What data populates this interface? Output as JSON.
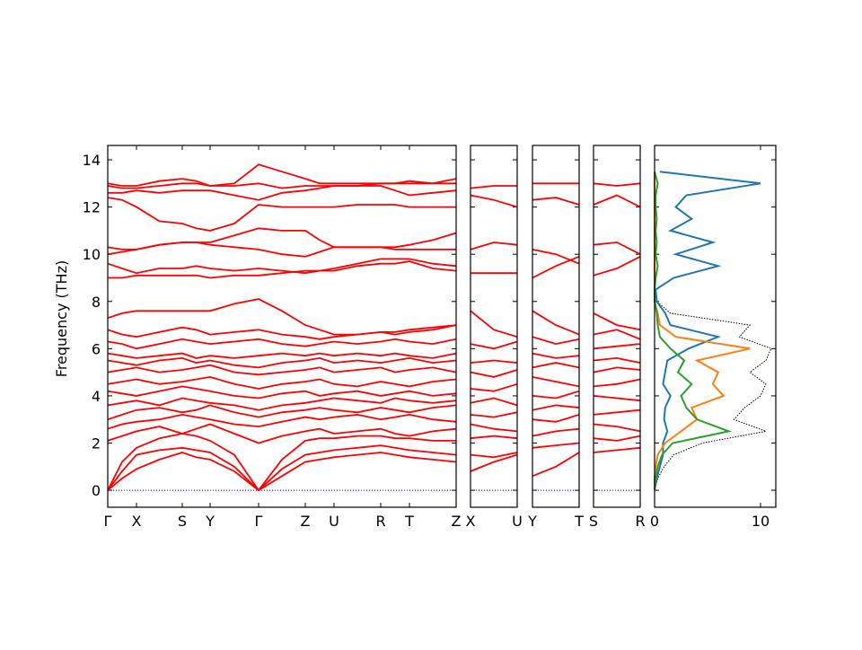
{
  "chart_data": [
    {
      "type": "line",
      "ylabel": "Frequency (THz)",
      "color": "#ff0000",
      "zero_line": true,
      "zero_line_color": "#0000cc",
      "xlim": [
        0,
        3.88
      ],
      "ylim": [
        -0.72,
        14.61
      ],
      "yticks": [
        0,
        2,
        4,
        6,
        8,
        10,
        12,
        14
      ],
      "xticks": [
        {
          "value": 0,
          "label": "Γ"
        },
        {
          "value": 0.32,
          "label": "X"
        },
        {
          "value": 0.83,
          "label": "S"
        },
        {
          "value": 1.14,
          "label": "Y"
        },
        {
          "value": 1.68,
          "label": "Γ"
        },
        {
          "value": 2.2,
          "label": "Z"
        },
        {
          "value": 2.52,
          "label": "U"
        },
        {
          "value": 3.04,
          "label": "R"
        },
        {
          "value": 3.36,
          "label": "T"
        },
        {
          "value": 3.88,
          "label": "Z"
        }
      ],
      "x": [
        0,
        0.16,
        0.32,
        0.575,
        0.83,
        0.985,
        1.14,
        1.41,
        1.68,
        1.94,
        2.2,
        2.36,
        2.52,
        2.78,
        3.04,
        3.2,
        3.36,
        3.62,
        3.88
      ],
      "series": [
        {
          "values": [
            0,
            0.5,
            0.9,
            1.3,
            1.6,
            1.4,
            1.3,
            0.8,
            0,
            0.6,
            1.2,
            1.3,
            1.4,
            1.5,
            1.6,
            1.5,
            1.4,
            1.3,
            1.2
          ]
        },
        {
          "values": [
            0,
            0.8,
            1.5,
            1.7,
            1.8,
            1.7,
            1.6,
            1.0,
            0,
            0.9,
            1.5,
            1.6,
            1.7,
            1.8,
            1.9,
            1.8,
            1.7,
            1.6,
            1.5
          ]
        },
        {
          "values": [
            0,
            1.2,
            1.8,
            2.2,
            2.4,
            2.3,
            2.1,
            1.5,
            0,
            1.3,
            2.1,
            2.2,
            2.2,
            2.3,
            2.3,
            2.2,
            2.2,
            2.1,
            2.1
          ]
        },
        {
          "values": [
            2.1,
            2.3,
            2.5,
            2.7,
            2.4,
            2.6,
            2.8,
            2.4,
            2.0,
            2.3,
            2.5,
            2.6,
            2.4,
            2.5,
            2.6,
            2.4,
            2.3,
            2.5,
            2.6
          ]
        },
        {
          "values": [
            2.6,
            2.8,
            2.9,
            3.0,
            3.2,
            3.1,
            3.0,
            2.8,
            2.7,
            2.9,
            3.1,
            3.0,
            3.1,
            3.2,
            3.0,
            3.1,
            3.2,
            3.0,
            2.9
          ]
        },
        {
          "values": [
            3.0,
            3.2,
            3.4,
            3.5,
            3.3,
            3.4,
            3.6,
            3.3,
            3.1,
            3.3,
            3.4,
            3.5,
            3.4,
            3.3,
            3.5,
            3.4,
            3.3,
            3.5,
            3.6
          ]
        },
        {
          "values": [
            3.6,
            3.7,
            3.8,
            3.6,
            3.9,
            3.8,
            3.7,
            3.6,
            3.4,
            3.6,
            3.7,
            3.8,
            3.9,
            3.8,
            3.7,
            3.9,
            3.8,
            3.7,
            3.8
          ]
        },
        {
          "values": [
            4.2,
            4.1,
            4.0,
            4.2,
            4.4,
            4.3,
            4.2,
            4.0,
            3.9,
            4.1,
            4.2,
            4.0,
            4.1,
            4.2,
            4.0,
            4.1,
            4.2,
            4.0,
            4.1
          ]
        },
        {
          "values": [
            4.5,
            4.6,
            4.7,
            4.5,
            4.6,
            4.7,
            4.8,
            4.5,
            4.3,
            4.5,
            4.6,
            4.7,
            4.5,
            4.4,
            4.6,
            4.5,
            4.4,
            4.6,
            4.7
          ]
        },
        {
          "values": [
            5.0,
            5.1,
            5.2,
            5.0,
            5.1,
            5.2,
            5.3,
            5.0,
            4.9,
            5.0,
            5.1,
            5.2,
            5.0,
            5.1,
            5.2,
            5.0,
            5.1,
            5.2,
            5.0
          ]
        },
        {
          "values": [
            5.5,
            5.4,
            5.3,
            5.5,
            5.6,
            5.4,
            5.5,
            5.3,
            5.2,
            5.4,
            5.5,
            5.6,
            5.4,
            5.5,
            5.4,
            5.5,
            5.6,
            5.4,
            5.5
          ]
        },
        {
          "values": [
            5.8,
            5.7,
            5.6,
            5.7,
            5.8,
            5.6,
            5.7,
            5.6,
            5.7,
            5.8,
            5.7,
            5.8,
            5.7,
            5.8,
            5.7,
            5.8,
            5.7,
            5.6,
            5.8
          ]
        },
        {
          "values": [
            6.3,
            6.2,
            6.0,
            6.2,
            6.4,
            6.3,
            6.2,
            6.3,
            6.4,
            6.2,
            6.1,
            6.2,
            6.3,
            6.2,
            6.3,
            6.4,
            6.3,
            6.2,
            6.4
          ]
        },
        {
          "values": [
            6.8,
            6.6,
            6.5,
            6.7,
            6.9,
            6.8,
            6.6,
            6.7,
            6.8,
            6.6,
            6.5,
            6.4,
            6.5,
            6.6,
            6.7,
            6.6,
            6.7,
            6.8,
            7.0
          ]
        },
        {
          "values": [
            7.3,
            7.5,
            7.6,
            7.6,
            7.6,
            7.6,
            7.6,
            7.9,
            8.1,
            7.6,
            7.0,
            6.8,
            6.6,
            6.6,
            6.7,
            6.7,
            6.8,
            6.9,
            7.0
          ]
        },
        {
          "values": [
            9.0,
            9.0,
            9.1,
            9.1,
            9.1,
            9.1,
            9.0,
            9.1,
            9.1,
            9.2,
            9.3,
            9.3,
            9.3,
            9.5,
            9.6,
            9.6,
            9.7,
            9.4,
            9.3
          ]
        },
        {
          "values": [
            9.6,
            9.4,
            9.2,
            9.4,
            9.4,
            9.5,
            9.4,
            9.3,
            9.4,
            9.3,
            9.2,
            9.3,
            9.4,
            9.6,
            9.8,
            9.8,
            9.8,
            9.6,
            9.5
          ]
        },
        {
          "values": [
            10.0,
            10.1,
            10.2,
            10.4,
            10.5,
            10.5,
            10.4,
            10.3,
            10.2,
            10.0,
            9.9,
            10.1,
            10.3,
            10.3,
            10.3,
            10.3,
            10.4,
            10.6,
            10.9
          ]
        },
        {
          "values": [
            10.3,
            10.2,
            10.2,
            10.4,
            10.5,
            10.5,
            10.5,
            10.8,
            11.1,
            11.0,
            11.0,
            10.6,
            10.3,
            10.3,
            10.3,
            10.2,
            10.2,
            10.2,
            10.2
          ]
        },
        {
          "values": [
            12.4,
            12.3,
            12.0,
            11.4,
            11.3,
            11.1,
            11.0,
            11.3,
            12.1,
            12.0,
            12.0,
            12.0,
            12.0,
            12.1,
            12.1,
            12.1,
            12.0,
            12.0,
            12.0
          ]
        },
        {
          "values": [
            12.6,
            12.6,
            12.7,
            12.6,
            12.7,
            12.7,
            12.7,
            12.5,
            12.3,
            12.6,
            12.7,
            12.8,
            12.9,
            12.9,
            12.9,
            12.7,
            12.5,
            12.6,
            12.7
          ]
        },
        {
          "values": [
            12.9,
            12.8,
            12.8,
            12.9,
            13.0,
            13.0,
            12.9,
            12.9,
            13.0,
            12.8,
            12.9,
            12.9,
            12.9,
            12.9,
            13.0,
            13.0,
            13.0,
            13.0,
            13.0
          ]
        },
        {
          "values": [
            13.0,
            12.9,
            12.9,
            13.1,
            13.2,
            13.1,
            12.9,
            13.0,
            13.8,
            13.5,
            13.2,
            13.0,
            13.0,
            13.0,
            13.0,
            13.0,
            13.1,
            13.0,
            13.2
          ]
        }
      ]
    },
    {
      "type": "line",
      "color": "#ff0000",
      "zero_line": true,
      "zero_line_color": "#0000cc",
      "xlim": [
        0,
        0.52
      ],
      "ylim": [
        -0.72,
        14.61
      ],
      "xticks": [
        {
          "value": 0,
          "label": "X"
        },
        {
          "value": 0.52,
          "label": "U"
        }
      ],
      "x": [
        0,
        0.26,
        0.52
      ],
      "series": [
        {
          "values": [
            0.8,
            1.2,
            1.5
          ]
        },
        {
          "values": [
            1.5,
            1.4,
            1.6
          ]
        },
        {
          "values": [
            2.2,
            2.3,
            2.2
          ]
        },
        {
          "values": [
            2.8,
            2.6,
            2.5
          ]
        },
        {
          "values": [
            3.2,
            3.1,
            3.3
          ]
        },
        {
          "values": [
            3.7,
            3.9,
            3.6
          ]
        },
        {
          "values": [
            4.3,
            4.2,
            4.5
          ]
        },
        {
          "values": [
            5.0,
            4.8,
            5.1
          ]
        },
        {
          "values": [
            5.4,
            5.5,
            5.4
          ]
        },
        {
          "values": [
            6.2,
            6.0,
            6.3
          ]
        },
        {
          "values": [
            7.6,
            6.8,
            6.5
          ]
        },
        {
          "values": [
            9.2,
            9.2,
            9.2
          ]
        },
        {
          "values": [
            10.2,
            10.5,
            10.4
          ]
        },
        {
          "values": [
            12.5,
            12.3,
            12.0
          ]
        },
        {
          "values": [
            12.8,
            12.9,
            12.9
          ]
        }
      ]
    },
    {
      "type": "line",
      "color": "#ff0000",
      "zero_line": true,
      "zero_line_color": "#0000cc",
      "xlim": [
        0,
        0.52
      ],
      "ylim": [
        -0.72,
        14.61
      ],
      "xticks": [
        {
          "value": 0,
          "label": "Y"
        },
        {
          "value": 0.52,
          "label": "T"
        }
      ],
      "x": [
        0,
        0.26,
        0.52
      ],
      "series": [
        {
          "values": [
            0.6,
            1.0,
            1.6
          ]
        },
        {
          "values": [
            1.8,
            1.9,
            2.0
          ]
        },
        {
          "values": [
            2.3,
            2.5,
            2.6
          ]
        },
        {
          "values": [
            3.0,
            2.9,
            3.2
          ]
        },
        {
          "values": [
            3.4,
            3.6,
            3.5
          ]
        },
        {
          "values": [
            4.0,
            3.9,
            4.2
          ]
        },
        {
          "values": [
            4.8,
            4.6,
            4.4
          ]
        },
        {
          "values": [
            5.2,
            5.4,
            5.2
          ]
        },
        {
          "values": [
            5.8,
            5.6,
            5.7
          ]
        },
        {
          "values": [
            6.5,
            6.2,
            6.4
          ]
        },
        {
          "values": [
            7.6,
            7.0,
            6.6
          ]
        },
        {
          "values": [
            9.0,
            9.5,
            9.9
          ]
        },
        {
          "values": [
            10.2,
            10.0,
            9.6
          ]
        },
        {
          "values": [
            12.3,
            12.4,
            12.1
          ]
        },
        {
          "values": [
            13.0,
            13.0,
            13.0
          ]
        }
      ]
    },
    {
      "type": "line",
      "color": "#ff0000",
      "zero_line": true,
      "zero_line_color": "#0000cc",
      "xlim": [
        0,
        0.52
      ],
      "ylim": [
        -0.72,
        14.61
      ],
      "xticks": [
        {
          "value": 0,
          "label": "S"
        },
        {
          "value": 0.52,
          "label": "R"
        }
      ],
      "x": [
        0,
        0.26,
        0.52
      ],
      "series": [
        {
          "values": [
            1.6,
            1.7,
            1.8
          ]
        },
        {
          "values": [
            2.2,
            2.1,
            2.3
          ]
        },
        {
          "values": [
            2.8,
            2.7,
            2.5
          ]
        },
        {
          "values": [
            3.2,
            3.3,
            3.4
          ]
        },
        {
          "values": [
            4.0,
            3.9,
            3.8
          ]
        },
        {
          "values": [
            4.4,
            4.5,
            4.7
          ]
        },
        {
          "values": [
            5.0,
            5.2,
            5.1
          ]
        },
        {
          "values": [
            5.5,
            5.6,
            5.4
          ]
        },
        {
          "values": [
            6.0,
            6.1,
            6.2
          ]
        },
        {
          "values": [
            6.6,
            6.8,
            6.4
          ]
        },
        {
          "values": [
            7.5,
            7.0,
            6.8
          ]
        },
        {
          "values": [
            9.1,
            9.4,
            9.9
          ]
        },
        {
          "values": [
            10.4,
            10.5,
            10.0
          ]
        },
        {
          "values": [
            12.1,
            12.5,
            12.0
          ]
        },
        {
          "values": [
            13.0,
            12.9,
            13.0
          ]
        }
      ]
    },
    {
      "type": "dos",
      "xlim": [
        0,
        11.44
      ],
      "ylim": [
        -0.72,
        14.61
      ],
      "xticks": [
        0,
        10
      ],
      "y": [
        0,
        0.5,
        1,
        1.5,
        2,
        2.5,
        3,
        3.5,
        4,
        4.5,
        5,
        5.5,
        6,
        6.5,
        7,
        7.5,
        8,
        8.5,
        9,
        9.5,
        10,
        10.5,
        11,
        11.5,
        12,
        12.5,
        13,
        13.5
      ],
      "series": [
        {
          "color": "#000000",
          "style": "dotted",
          "values": [
            0,
            0.3,
            0.9,
            1.8,
            4.5,
            10.5,
            7.5,
            8.5,
            10,
            10.5,
            9,
            10.5,
            11,
            8,
            9,
            1.5,
            0.2,
            0.1,
            1.8,
            6,
            2,
            5.5,
            1.5,
            3.5,
            2,
            3,
            10,
            0.5
          ]
        },
        {
          "color": "#1f77b4",
          "style": "solid",
          "values": [
            0,
            0.2,
            0.5,
            0.8,
            0.8,
            1.2,
            0.9,
            1.0,
            1.5,
            0.8,
            1.0,
            1.2,
            3.2,
            6,
            1.5,
            1.0,
            0.2,
            0.1,
            1.8,
            6,
            2,
            5.5,
            1.5,
            3.5,
            2,
            3,
            10,
            0.5
          ]
        },
        {
          "color": "#ff7f0e",
          "style": "solid",
          "values": [
            0,
            0,
            0.1,
            0.3,
            1.0,
            2.5,
            4,
            3.5,
            6.5,
            5.5,
            6,
            4,
            9,
            2,
            0.5,
            0.3,
            0,
            0,
            0,
            0,
            0,
            0,
            0,
            0,
            0,
            0,
            0,
            0
          ]
        },
        {
          "color": "#2ca02c",
          "style": "solid",
          "values": [
            0,
            0.1,
            0.3,
            0.7,
            1.7,
            7,
            4,
            3,
            2.5,
            3.5,
            2.2,
            2.8,
            1.5,
            0.5,
            0.3,
            0.2,
            0,
            0,
            0.1,
            0.3,
            0.1,
            0.2,
            0.1,
            0.2,
            0.1,
            0.1,
            0.3,
            0
          ]
        }
      ]
    }
  ]
}
